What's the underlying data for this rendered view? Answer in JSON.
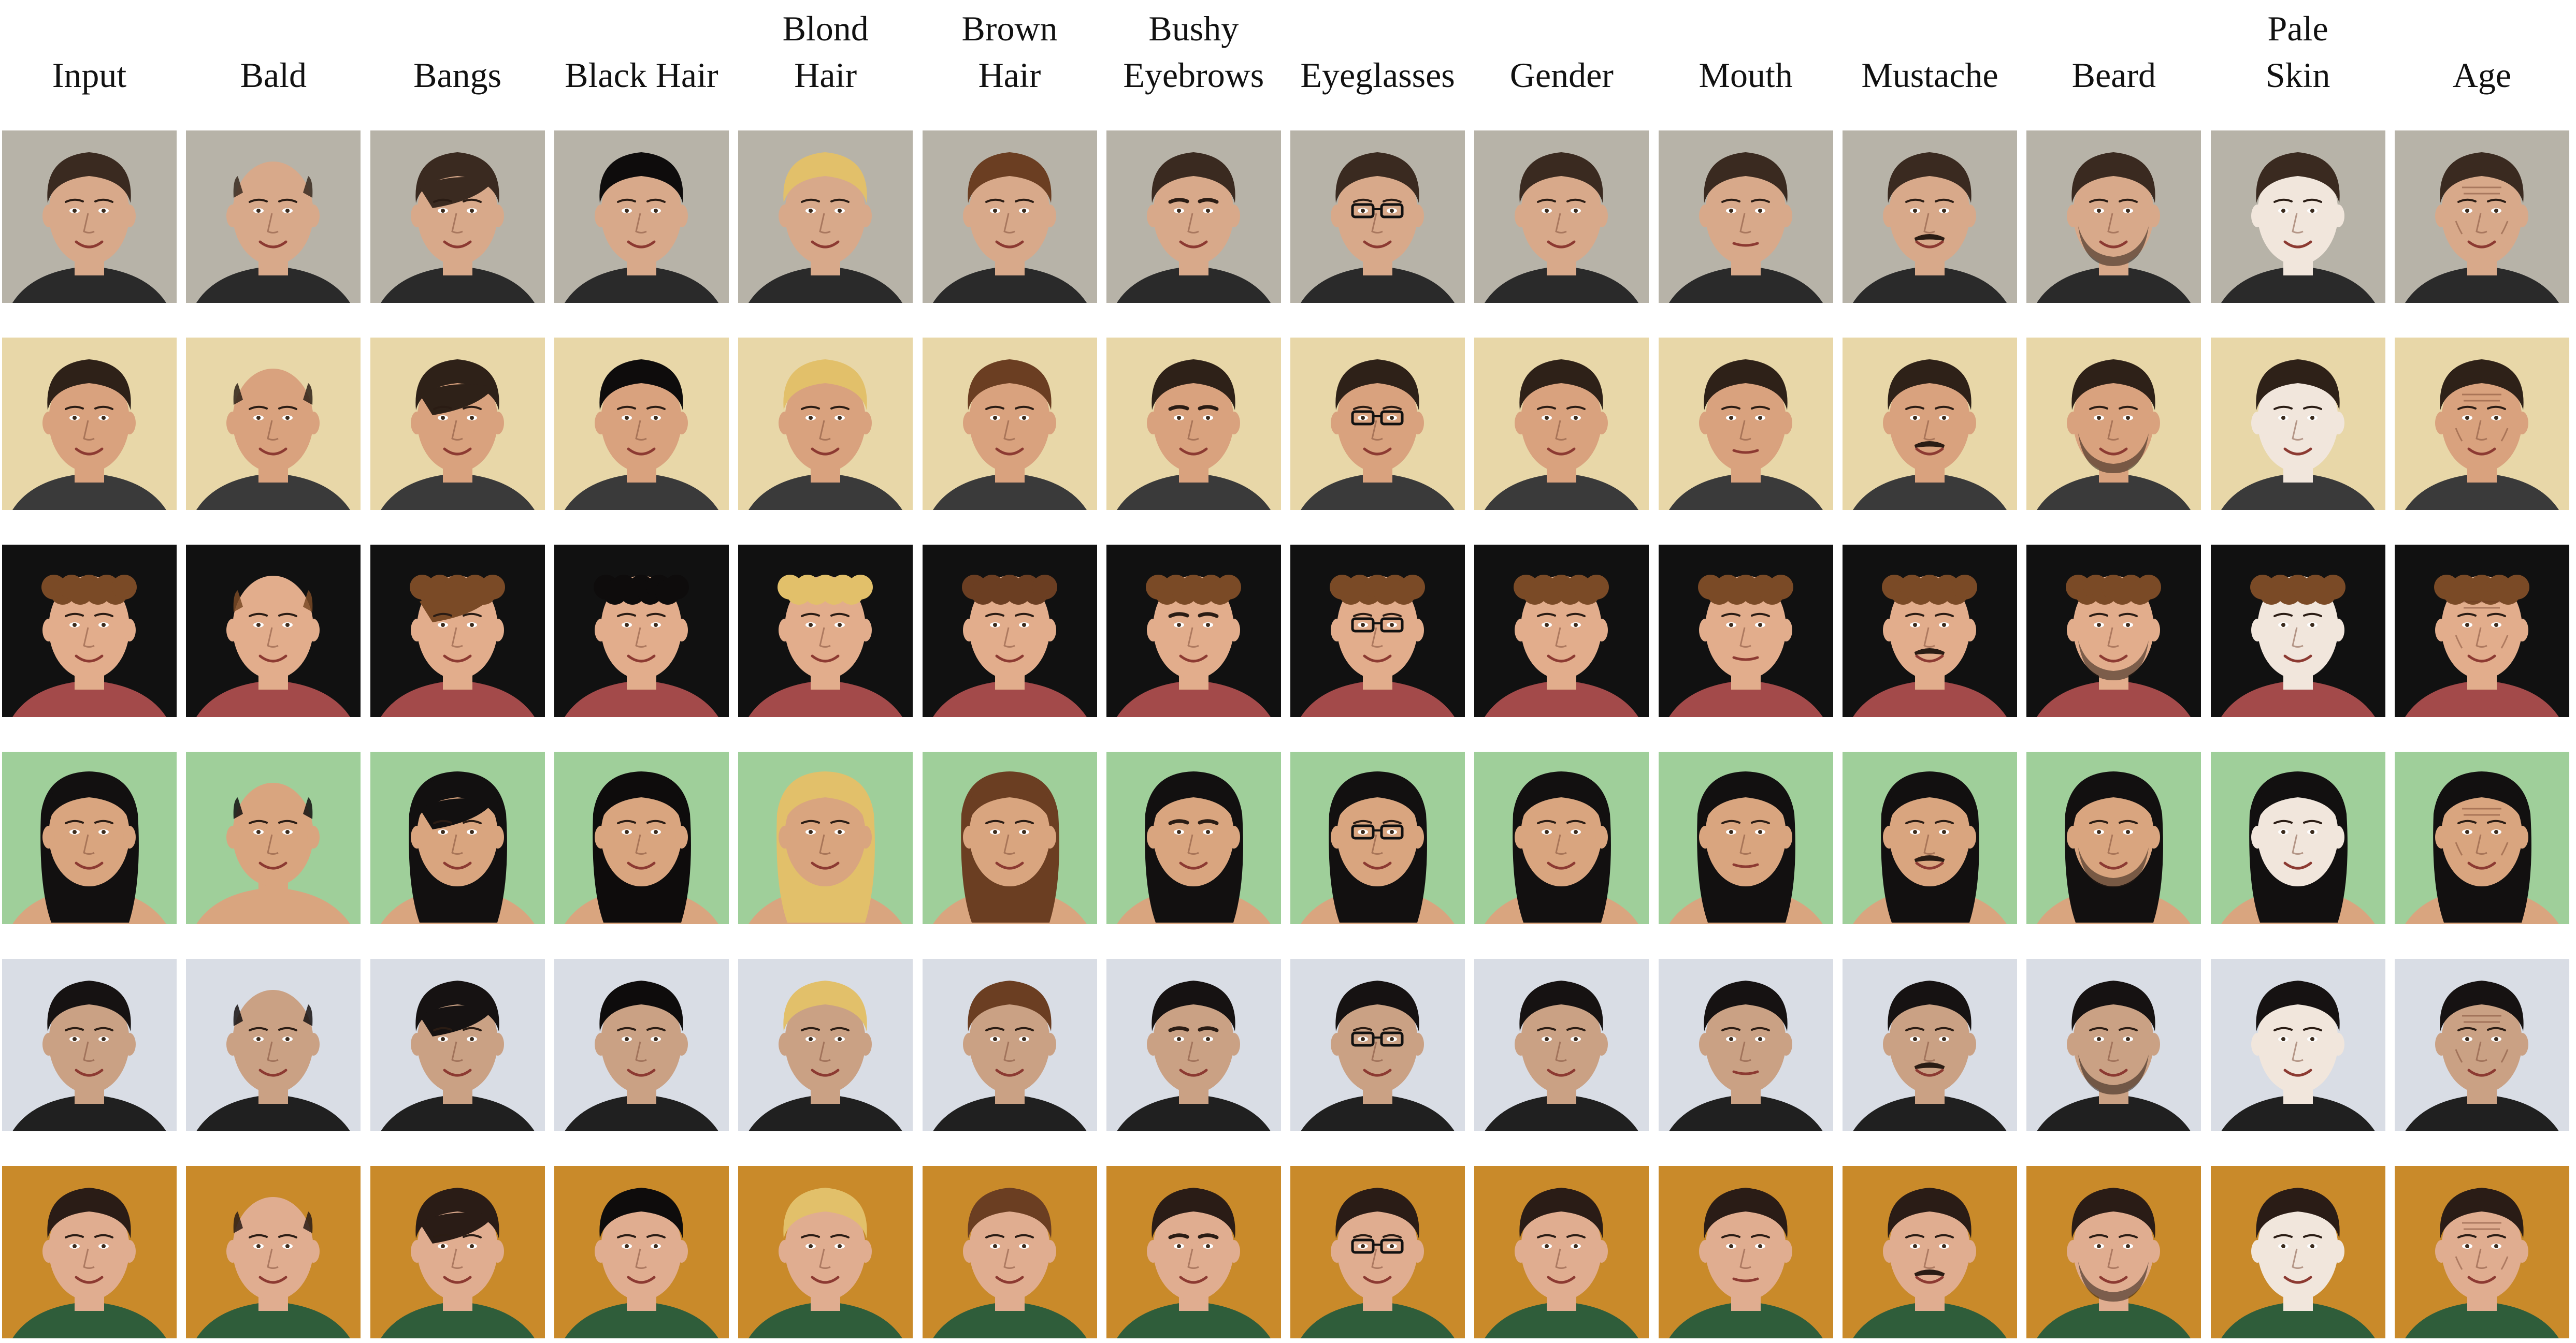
{
  "columns": [
    {
      "lines": [
        "Input"
      ]
    },
    {
      "lines": [
        "Bald"
      ]
    },
    {
      "lines": [
        "Bangs"
      ]
    },
    {
      "lines": [
        "Black Hair"
      ]
    },
    {
      "lines": [
        "Blond",
        "Hair"
      ]
    },
    {
      "lines": [
        "Brown",
        "Hair"
      ]
    },
    {
      "lines": [
        "Bushy",
        "Eyebrows"
      ]
    },
    {
      "lines": [
        "Eyeglasses"
      ]
    },
    {
      "lines": [
        "Gender"
      ]
    },
    {
      "lines": [
        "Mouth"
      ]
    },
    {
      "lines": [
        "Mustache"
      ]
    },
    {
      "lines": [
        "Beard"
      ]
    },
    {
      "lines": [
        "Pale",
        "Skin"
      ]
    },
    {
      "lines": [
        "Age"
      ]
    }
  ],
  "rows": [
    {
      "background": "#b7b3a8",
      "skin": "#d8a98a",
      "hair": "#3a2a20",
      "shirt": "#2a2a2a",
      "hair_style": "short"
    },
    {
      "background": "#e8d7a8",
      "skin": "#d9a27e",
      "hair": "#2e2118",
      "shirt": "#3a3a3a",
      "hair_style": "short"
    },
    {
      "background": "#111111",
      "skin": "#e2ad8c",
      "hair": "#7a4a26",
      "shirt": "#a34a4a",
      "hair_style": "curly"
    },
    {
      "background": "#9fcf9a",
      "skin": "#d9a57f",
      "hair": "#121010",
      "shirt": "#d9a57f",
      "hair_style": "long"
    },
    {
      "background": "#d9dde5",
      "skin": "#caa184",
      "hair": "#161212",
      "shirt": "#202020",
      "hair_style": "short"
    },
    {
      "background": "#c98a2a",
      "skin": "#e0ad90",
      "hair": "#2a1c16",
      "shirt": "#2f5d3a",
      "hair_style": "tied"
    }
  ],
  "edit_colors": {
    "black_hair": "#0e0c0c",
    "blond_hair": "#e2c06a",
    "brown_hair": "#6b3e22",
    "pale_skin": "#f1e6dc",
    "eyeglasses": "#111111"
  }
}
